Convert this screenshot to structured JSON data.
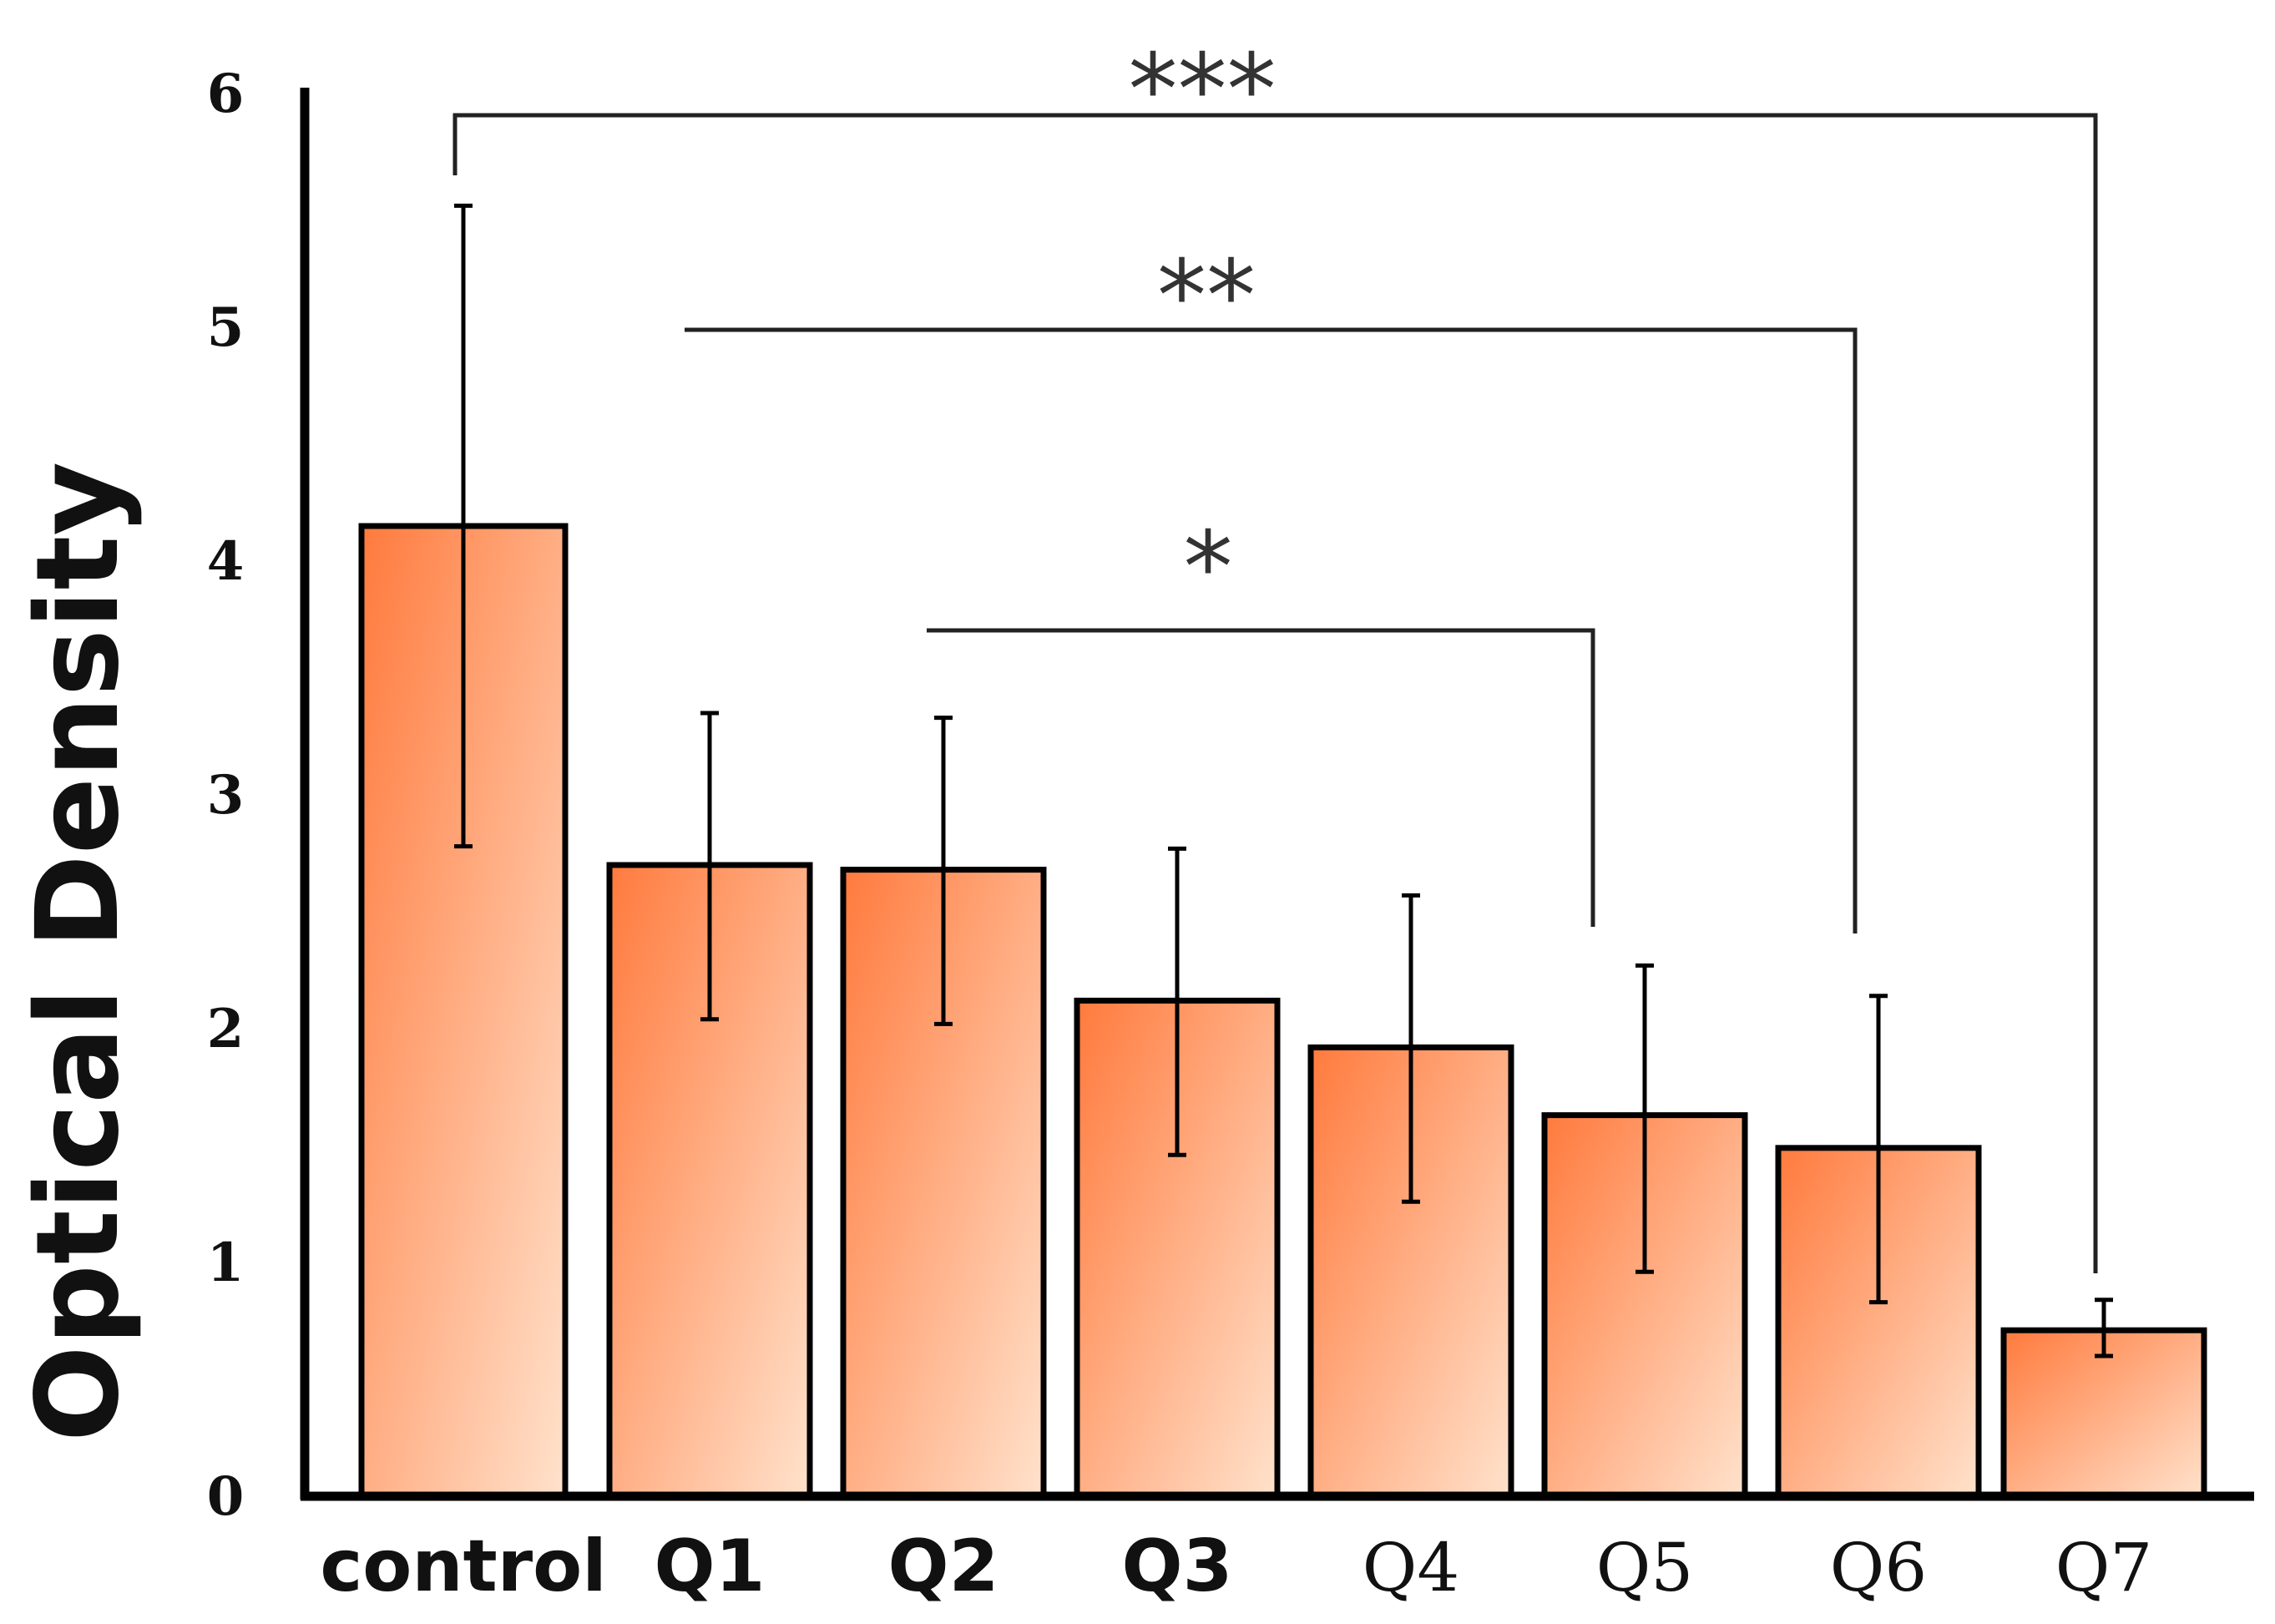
{
  "chart_data": {
    "type": "bar",
    "categories": [
      "control",
      "Q1",
      "Q2",
      "Q3",
      "Q4",
      "Q5",
      "Q6",
      "Q7"
    ],
    "values": [
      4.15,
      2.7,
      2.68,
      2.12,
      1.92,
      1.63,
      1.49,
      0.71
    ],
    "error_bars": [
      [
        2.78,
        5.52
      ],
      [
        2.04,
        3.35
      ],
      [
        2.02,
        3.33
      ],
      [
        1.46,
        2.77
      ],
      [
        1.26,
        2.57
      ],
      [
        0.96,
        2.27
      ],
      [
        0.83,
        2.14
      ],
      [
        0.6,
        0.84
      ]
    ],
    "ylabel": "Optical Density",
    "xlabel": "",
    "ylim": [
      0,
      6
    ],
    "yticks": [
      0,
      1,
      2,
      3,
      4,
      5,
      6
    ],
    "bar_color_dark": "#ff7a3d",
    "bar_color_light": "#ffe2cc",
    "significance": [
      {
        "from": "control",
        "to": "Q7",
        "label": "***"
      },
      {
        "from": "Q1",
        "to": "Q6",
        "label": "**"
      },
      {
        "from": "Q2",
        "to": "Q5",
        "label": "*"
      }
    ],
    "grid": false,
    "legend": "none"
  }
}
